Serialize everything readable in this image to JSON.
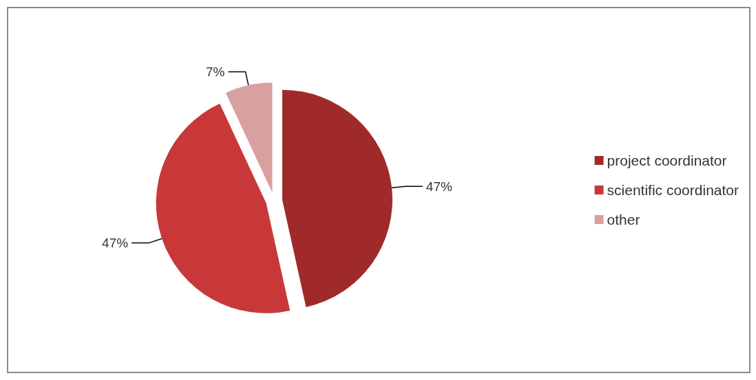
{
  "chart_data": {
    "type": "pie",
    "categories": [
      "project coordinator",
      "scientific coordinator",
      "other"
    ],
    "values": [
      47,
      47,
      7
    ],
    "value_labels": [
      "47%",
      "47%",
      "7%"
    ],
    "colors": [
      "#a02a2a",
      "#c83838",
      "#d9a0a0"
    ],
    "legend": "right"
  }
}
